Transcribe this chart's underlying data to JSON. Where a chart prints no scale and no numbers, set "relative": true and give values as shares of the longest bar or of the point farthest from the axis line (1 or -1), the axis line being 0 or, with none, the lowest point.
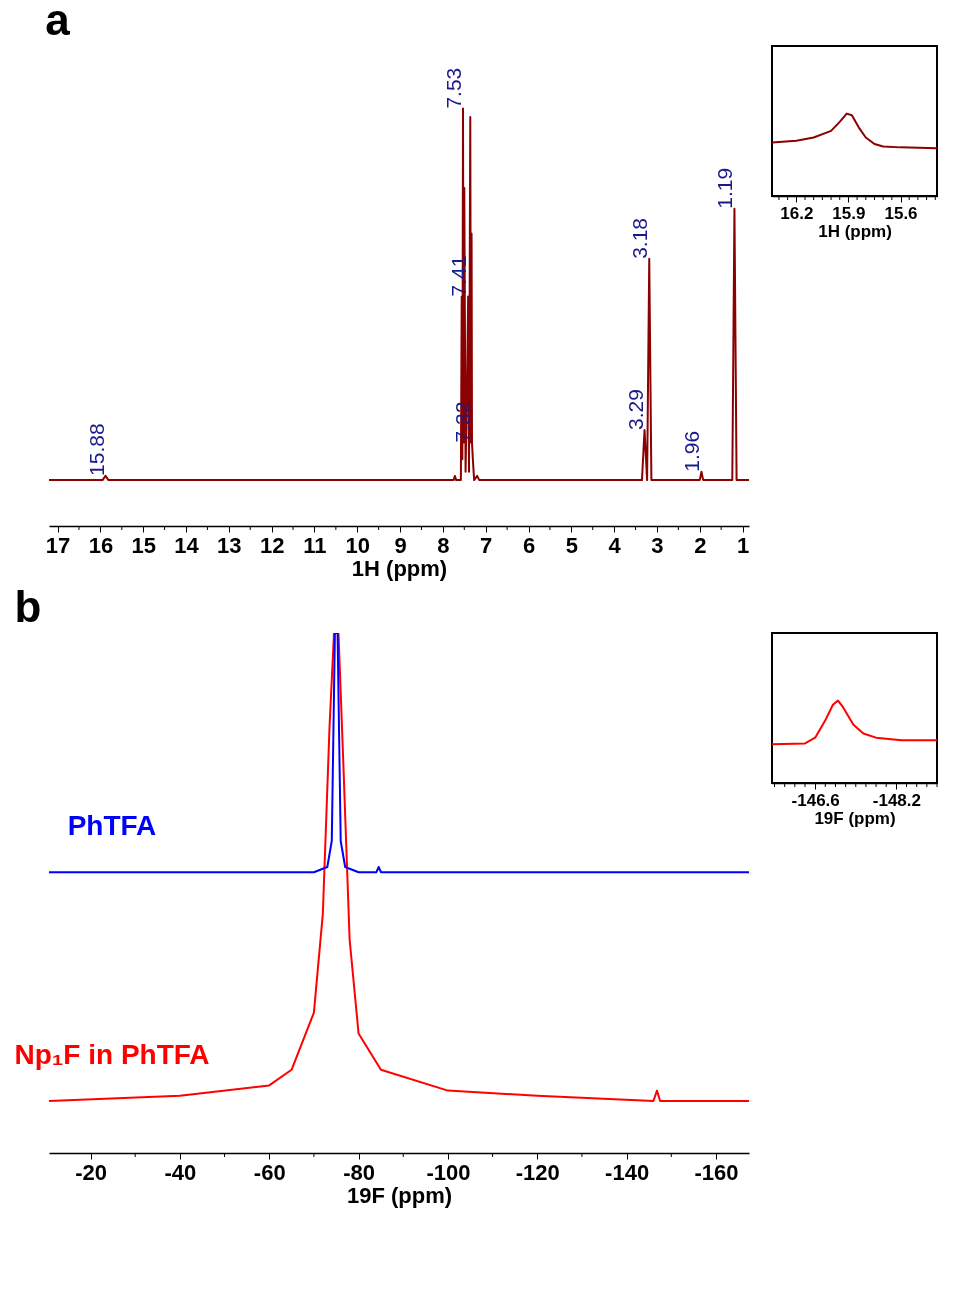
{
  "chart_data": [
    {
      "type": "line",
      "title": "a",
      "xlabel": "1H (ppm)",
      "relative": true,
      "xlim": [
        17.2,
        0.85
      ],
      "xticks": [
        17,
        {
          "value": 16.5,
          "label": null
        },
        16,
        {
          "value": 15.5,
          "label": null
        },
        15,
        {
          "value": 14.5,
          "label": null
        },
        14,
        {
          "value": 13.5,
          "label": null
        },
        13,
        {
          "value": 12.5,
          "label": null
        },
        12,
        {
          "value": 11.5,
          "label": null
        },
        11,
        {
          "value": 10.5,
          "label": null
        },
        10,
        {
          "value": 9.5,
          "label": null
        },
        9,
        {
          "value": 8.5,
          "label": null
        },
        8,
        {
          "value": 7.5,
          "label": null
        },
        7,
        {
          "value": 6.5,
          "label": null
        },
        6,
        {
          "value": 5.5,
          "label": null
        },
        5,
        {
          "value": 4.5,
          "label": null
        },
        4,
        {
          "value": 3.5,
          "label": null
        },
        3,
        {
          "value": 2.5,
          "label": null
        },
        2,
        {
          "value": 1.5,
          "label": null
        },
        1
      ],
      "series": [
        {
          "color": "#8b0000",
          "x": [
            17.2,
            15.95,
            15.88,
            15.81,
            7.75,
            7.72,
            7.69,
            7.58,
            7.56,
            7.545,
            7.53,
            7.515,
            7.5,
            7.47,
            7.43,
            7.41,
            7.39,
            7.36,
            7.345,
            7.33,
            7.32,
            7.3,
            7.27,
            7.2,
            7.15,
            3.35,
            3.29,
            3.23,
            3.18,
            3.13,
            2.0,
            1.96,
            1.92,
            1.24,
            1.19,
            1.14,
            0.85
          ],
          "values": [
            0.11,
            0.11,
            0.12,
            0.11,
            0.11,
            0.12,
            0.11,
            0.11,
            0.55,
            0.16,
            1,
            0.2,
            0.81,
            0.13,
            0.38,
            0.55,
            0.13,
            0.98,
            0.2,
            0.7,
            0.2,
            0.16,
            0.11,
            0.12,
            0.11,
            0.11,
            0.23,
            0.11,
            0.64,
            0.11,
            0.11,
            0.13,
            0.11,
            0.11,
            0.76,
            0.11,
            0.11
          ]
        }
      ],
      "annotations": [
        {
          "text": "15.88",
          "x": 15.88,
          "y": 0.12
        },
        {
          "text": "7.53",
          "x": 7.53,
          "y": 1
        },
        {
          "text": "7.41",
          "x": 7.41,
          "y": 0.55
        },
        {
          "text": "7.32",
          "x": 7.32,
          "y": 0.2
        },
        {
          "text": "3.29",
          "x": 3.29,
          "y": 0.23
        },
        {
          "text": "3.18",
          "x": 3.18,
          "y": 0.64
        },
        {
          "text": "1.96",
          "x": 1.96,
          "y": 0.13
        },
        {
          "text": "1.19",
          "x": 1.19,
          "y": 0.76
        }
      ]
    },
    {
      "type": "line",
      "xlabel": "1H (ppm)",
      "relative": true,
      "xlim": [
        16.34,
        15.39
      ],
      "xticks": [
        {
          "value": 16.3,
          "label": null
        },
        {
          "value": 16.25,
          "label": null
        },
        16.2,
        {
          "value": 16.15,
          "label": null
        },
        {
          "value": 16.1,
          "label": null
        },
        {
          "value": 16.05,
          "label": null
        },
        {
          "value": 16.0,
          "label": null
        },
        {
          "value": 15.95,
          "label": null
        },
        15.9,
        {
          "value": 15.85,
          "label": null
        },
        {
          "value": 15.8,
          "label": null
        },
        {
          "value": 15.75,
          "label": null
        },
        {
          "value": 15.7,
          "label": null
        },
        {
          "value": 15.65,
          "label": null
        },
        15.6,
        {
          "value": 15.55,
          "label": null
        },
        {
          "value": 15.5,
          "label": null
        },
        {
          "value": 15.45,
          "label": null
        },
        {
          "value": 15.4,
          "label": null
        }
      ],
      "series": [
        {
          "color": "#8b0000",
          "x": [
            16.34,
            16.2,
            16.1,
            16.0,
            15.95,
            15.91,
            15.88,
            15.84,
            15.8,
            15.75,
            15.7,
            15.6,
            15.39
          ],
          "values": [
            0.65,
            0.67,
            0.71,
            0.79,
            0.9,
            1,
            0.98,
            0.83,
            0.71,
            0.63,
            0.6,
            0.59,
            0.58
          ]
        }
      ]
    },
    {
      "type": "line",
      "title": "b",
      "xlabel": "19F (ppm)",
      "relative": true,
      "xlim": [
        -10.7,
        -167.4
      ],
      "xticks": [
        -20,
        {
          "value": -30,
          "label": null
        },
        -40,
        {
          "value": -50,
          "label": null
        },
        -60,
        {
          "value": -70,
          "label": null
        },
        -80,
        {
          "value": -90,
          "label": null
        },
        -100,
        {
          "value": -110,
          "label": null
        },
        -120,
        {
          "value": -130,
          "label": null
        },
        -140,
        {
          "value": -150,
          "label": null
        },
        -160
      ],
      "series": [
        {
          "name": "PhTFA",
          "color": "#0000ff",
          "x": [
            -10.7,
            -70,
            -73,
            -74,
            -74.7,
            -75.3,
            -76,
            -77,
            -80,
            -84,
            -84.5,
            -85,
            -167.4
          ],
          "values": [
            0.54,
            0.54,
            0.55,
            0.6,
            1,
            1,
            0.6,
            0.55,
            0.54,
            0.54,
            0.55,
            0.54,
            0.54
          ]
        },
        {
          "name": "Np₁F in PhTFA",
          "color": "#ff0000",
          "x": [
            -10.7,
            -40,
            -60,
            -65,
            -70,
            -72,
            -73.5,
            -74.5,
            -75.5,
            -76.5,
            -78,
            -80,
            -85,
            -100,
            -120,
            -146,
            -146.8,
            -147.5,
            -167.4
          ],
          "values": [
            0.1,
            0.11,
            0.13,
            0.16,
            0.27,
            0.46,
            0.82,
            1,
            1,
            0.77,
            0.41,
            0.23,
            0.16,
            0.12,
            0.11,
            0.1,
            0.12,
            0.1,
            0.1
          ]
        }
      ]
    },
    {
      "type": "line",
      "xlabel": "19F (ppm)",
      "relative": true,
      "xlim": [
        -145.75,
        -149.0
      ],
      "xticks": [
        {
          "value": -145.8,
          "label": null
        },
        {
          "value": -146,
          "label": null
        },
        {
          "value": -146.2,
          "label": null
        },
        {
          "value": -146.4,
          "label": null
        },
        -146.6,
        {
          "value": -146.8,
          "label": null
        },
        {
          "value": -147,
          "label": null
        },
        {
          "value": -147.2,
          "label": null
        },
        {
          "value": -147.4,
          "label": null
        },
        {
          "value": -147.6,
          "label": null
        },
        {
          "value": -147.8,
          "label": null
        },
        {
          "value": -148,
          "label": null
        },
        -148.2,
        {
          "value": -148.4,
          "label": null
        },
        {
          "value": -148.6,
          "label": null
        },
        {
          "value": -148.8,
          "label": null
        },
        {
          "value": -149,
          "label": null
        }
      ],
      "series": [
        {
          "color": "#ff0000",
          "x": [
            -145.75,
            -146.4,
            -146.6,
            -146.8,
            -146.95,
            -147.05,
            -147.15,
            -147.35,
            -147.55,
            -147.8,
            -148.3,
            -149
          ],
          "values": [
            0.47,
            0.48,
            0.55,
            0.76,
            0.95,
            1,
            0.92,
            0.71,
            0.6,
            0.55,
            0.52,
            0.52
          ]
        }
      ]
    }
  ]
}
